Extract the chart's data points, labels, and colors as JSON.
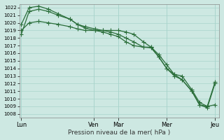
{
  "background_color": "#cde8e2",
  "grid_color": "#a8d4cc",
  "line_color": "#2a6e3a",
  "xlabel": "Pression niveau de la mer( hPa )",
  "ylim": [
    1007.5,
    1022.5
  ],
  "yticks": [
    1008,
    1009,
    1010,
    1011,
    1012,
    1013,
    1014,
    1015,
    1016,
    1017,
    1018,
    1019,
    1020,
    1021,
    1022
  ],
  "xtick_labels": [
    "Lun",
    "Ven",
    "Mar",
    "Mer",
    "Jeu"
  ],
  "xtick_positions": [
    0.0,
    0.375,
    0.5,
    0.75,
    1.0
  ],
  "line1_x": [
    0.0,
    0.04,
    0.09,
    0.14,
    0.19,
    0.25,
    0.29,
    0.33,
    0.38,
    0.42,
    0.46,
    0.5,
    0.54,
    0.58,
    0.63,
    0.67,
    0.71,
    0.75,
    0.79,
    0.83,
    0.88,
    0.92,
    0.96,
    1.0
  ],
  "line1_y": [
    1018.5,
    1021.5,
    1021.8,
    1021.5,
    1021.0,
    1020.5,
    1019.8,
    1019.5,
    1019.2,
    1019.0,
    1018.8,
    1018.5,
    1018.0,
    1017.5,
    1016.8,
    1016.8,
    1015.8,
    1014.5,
    1013.2,
    1013.0,
    1011.2,
    1009.5,
    1009.0,
    1012.2
  ],
  "line2_x": [
    0.0,
    0.04,
    0.09,
    0.14,
    0.19,
    0.25,
    0.29,
    0.33,
    0.38,
    0.42,
    0.46,
    0.5,
    0.54,
    0.58,
    0.63,
    0.67,
    0.71,
    0.75,
    0.79,
    0.83,
    0.88,
    0.92,
    0.96,
    1.0
  ],
  "line2_y": [
    1019.8,
    1022.0,
    1022.2,
    1021.8,
    1021.2,
    1020.5,
    1019.8,
    1019.3,
    1019.0,
    1018.8,
    1018.5,
    1018.2,
    1017.5,
    1017.0,
    1016.8,
    1016.7,
    1015.5,
    1014.0,
    1013.0,
    1012.5,
    1011.0,
    1009.2,
    1009.0,
    1009.2
  ],
  "line3_x": [
    0.0,
    0.04,
    0.09,
    0.14,
    0.19,
    0.25,
    0.29,
    0.33,
    0.38,
    0.42,
    0.46,
    0.5,
    0.54,
    0.58,
    0.63,
    0.67,
    0.71,
    0.75,
    0.79,
    0.83,
    0.88,
    0.92,
    0.96,
    1.0
  ],
  "line3_y": [
    1019.0,
    1020.0,
    1020.2,
    1020.0,
    1019.8,
    1019.5,
    1019.2,
    1019.0,
    1019.0,
    1019.0,
    1019.0,
    1019.0,
    1018.8,
    1018.5,
    1017.5,
    1016.8,
    1015.5,
    1014.0,
    1013.2,
    1012.5,
    1011.0,
    1009.2,
    1008.8,
    1012.0
  ]
}
